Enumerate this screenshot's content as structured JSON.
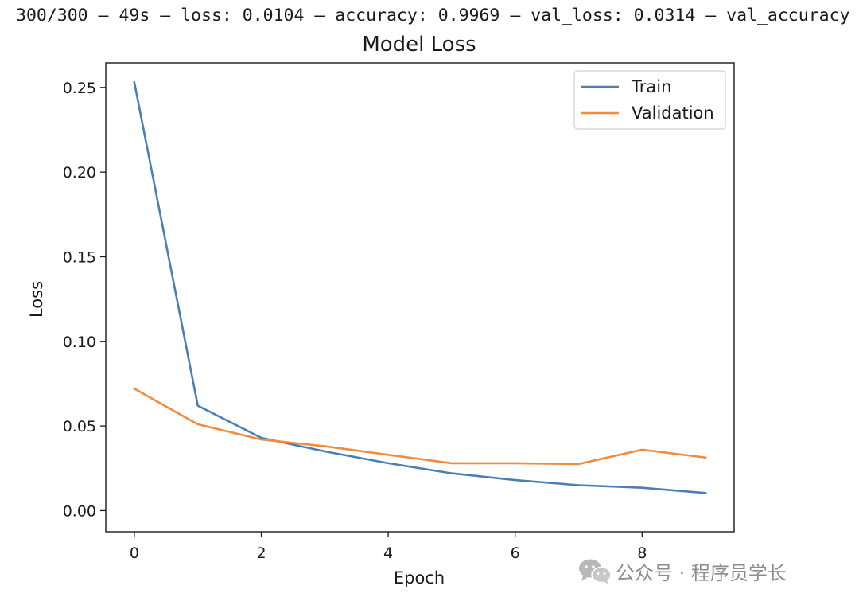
{
  "log": {
    "text": "300/300 — 49s — loss: 0.0104 — accuracy: 0.9969 — val_loss: 0.0314 — val_accuracy"
  },
  "watermark": {
    "icon": "wechat-icon",
    "text": "公众号 · 程序员学长"
  },
  "chart_data": {
    "type": "line",
    "title": "Model Loss",
    "xlabel": "Epoch",
    "ylabel": "Loss",
    "x": [
      0,
      1,
      2,
      3,
      4,
      5,
      6,
      7,
      8,
      9
    ],
    "series": [
      {
        "name": "Train",
        "color": "#4a7fb5",
        "values": [
          0.253,
          0.062,
          0.043,
          0.035,
          0.028,
          0.022,
          0.018,
          0.015,
          0.0135,
          0.0104
        ]
      },
      {
        "name": "Validation",
        "color": "#f08c3c",
        "values": [
          0.072,
          0.051,
          0.042,
          0.038,
          0.033,
          0.028,
          0.028,
          0.0275,
          0.036,
          0.0314
        ]
      }
    ],
    "xlim": [
      -0.45,
      9.45
    ],
    "ylim": [
      -0.0125,
      0.2645
    ],
    "xticks": [
      0,
      2,
      4,
      6,
      8
    ],
    "xtick_labels": [
      "0",
      "2",
      "4",
      "6",
      "8"
    ],
    "yticks": [
      0,
      0.05,
      0.1,
      0.15,
      0.2,
      0.25
    ],
    "ytick_labels": [
      "0.00",
      "0.05",
      "0.10",
      "0.15",
      "0.20",
      "0.25"
    ],
    "grid": false,
    "legend": "top-right"
  }
}
